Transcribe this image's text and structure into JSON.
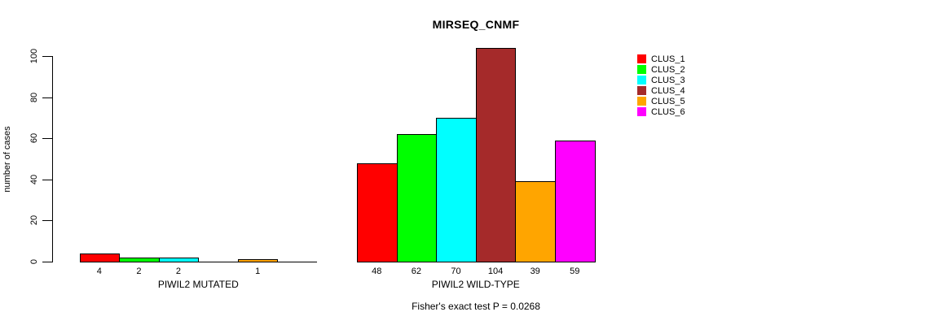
{
  "chart_data": {
    "type": "bar",
    "title": "MIRSEQ_CNMF",
    "ylabel": "number of cases",
    "note": "Fisher's exact test P = 0.0268",
    "ylim": [
      0,
      100
    ],
    "yticks": [
      0,
      20,
      40,
      60,
      80,
      100
    ],
    "grid": false,
    "legend_position": "right",
    "legend": [
      {
        "name": "CLUS_1",
        "color": "#FF0000"
      },
      {
        "name": "CLUS_2",
        "color": "#00FF00"
      },
      {
        "name": "CLUS_3",
        "color": "#00FFFF"
      },
      {
        "name": "CLUS_4",
        "color": "#A52A2A"
      },
      {
        "name": "CLUS_5",
        "color": "#FFA500"
      },
      {
        "name": "CLUS_6",
        "color": "#FF00FF"
      }
    ],
    "groups": [
      {
        "label": "PIWIL2 MUTATED",
        "values": [
          4,
          2,
          2,
          0,
          1,
          0
        ],
        "bar_labels": [
          "4",
          "2",
          "2",
          "",
          "1",
          ""
        ]
      },
      {
        "label": "PIWIL2 WILD-TYPE",
        "values": [
          48,
          62,
          70,
          104,
          39,
          59
        ],
        "bar_labels": [
          "48",
          "62",
          "70",
          "104",
          "39",
          "59"
        ]
      }
    ]
  }
}
